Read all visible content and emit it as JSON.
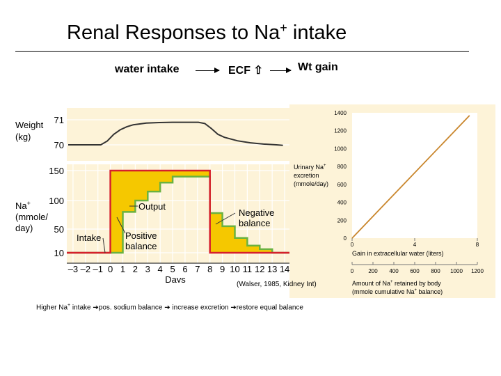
{
  "slide": {
    "title_main": "Renal Responses to Na",
    "title_sup": "+",
    "title_tail": " intake",
    "flow": {
      "item1": "water intake",
      "item2": "ECF",
      "item2_symbol": "⇧",
      "item3": "Wt gain"
    },
    "citation": "(Walser, 1985, Kidney Int)",
    "bottom_note": {
      "t1": "Higher Na",
      "sup": "+",
      "t2": " intake ",
      "arrow": "➔",
      "t3": "pos. sodium balance ",
      "t4": " increase excretion ",
      "t5": "restore equal balance"
    }
  },
  "colors": {
    "panel_bg": "#fdf3d8",
    "grid": "#ffffff",
    "intake_line": "#d6202c",
    "output_line": "#6ab23f",
    "balance_fill": "#f5c800",
    "weight_line": "#333333",
    "right_line": "#c9862c"
  },
  "chart_data": [
    {
      "type": "line",
      "panel": "weight",
      "ylabel_1": "Weight",
      "ylabel_2": "(kg)",
      "yticks": [
        "71",
        "70"
      ],
      "ylim": [
        69.8,
        71.3
      ],
      "x_range": [
        -3,
        14
      ],
      "series": [
        {
          "x": [
            -3,
            -0.5,
            0,
            0.5,
            1,
            1.5,
            2,
            3,
            4,
            5,
            6,
            7,
            7.5,
            8,
            8.5,
            9,
            10,
            11,
            12,
            13,
            13.5
          ],
          "y": [
            70.0,
            70.0,
            70.15,
            70.42,
            70.6,
            70.72,
            70.8,
            70.87,
            70.89,
            70.9,
            70.9,
            70.9,
            70.85,
            70.65,
            70.42,
            70.3,
            70.16,
            70.08,
            70.03,
            70.0,
            69.98
          ]
        }
      ]
    },
    {
      "type": "line",
      "panel": "sodium",
      "ylabel_1": "Na",
      "ylabel_1_sup": "+",
      "ylabel_2": "(mmole/",
      "ylabel_3": "day)",
      "yticks": [
        "150",
        "100",
        "50",
        "10"
      ],
      "xlabel": "Days",
      "xticks": [
        "–3",
        "–2",
        "–1",
        "0",
        "1",
        "2",
        "3",
        "4",
        "5",
        "6",
        "7",
        "8",
        "9",
        "10",
        "11",
        "12",
        "13",
        "14"
      ],
      "x_range": [
        -3.5,
        14.5
      ],
      "ylim": [
        0,
        160
      ],
      "series": [
        {
          "name": "Intake",
          "x": [
            -3.5,
            0,
            0,
            8,
            8,
            14.5
          ],
          "y": [
            10,
            10,
            150,
            150,
            10,
            10
          ]
        },
        {
          "name": "Output",
          "x": [
            -3.5,
            0,
            0,
            1,
            1,
            2,
            2,
            3,
            3,
            4,
            4,
            5,
            5,
            8,
            8,
            9,
            9,
            10,
            10,
            11,
            11,
            12,
            12,
            13,
            13,
            14.5
          ],
          "y": [
            10,
            10,
            10,
            10,
            80,
            80,
            100,
            100,
            115,
            115,
            130,
            130,
            140,
            140,
            78,
            78,
            55,
            55,
            35,
            35,
            22,
            22,
            16,
            16,
            10,
            10
          ]
        }
      ],
      "annotations": {
        "output": "Output",
        "negative_1": "Negative",
        "negative_2": "balance",
        "intake": "Intake",
        "positive_1": "Positive",
        "positive_2": "balance"
      }
    },
    {
      "type": "line",
      "panel": "excretion",
      "ylabel_1": "Urinary Na",
      "ylabel_1_sup": "+",
      "ylabel_2": "excretion",
      "ylabel_3": "(mmole/day)",
      "yticks": [
        "1400",
        "1200",
        "1000",
        "800",
        "600",
        "400",
        "200",
        "0"
      ],
      "ylim": [
        0,
        1400
      ],
      "xlabel": "Gain in extracellular water (liters)",
      "xticks": [
        "0",
        "4",
        "8"
      ],
      "x_range": [
        0,
        8
      ],
      "x2label_1": "Amount of Na",
      "x2label_1_sup": "+",
      "x2label_1_tail": " retained by body",
      "x2label_2": "(mmole cumulative Na",
      "x2label_2_sup": "+",
      "x2label_2_tail": " balance)",
      "x2ticks": [
        "0",
        "200",
        "400",
        "600",
        "800",
        "1000",
        "1200"
      ],
      "series": [
        {
          "x": [
            0,
            7.5
          ],
          "y": [
            0,
            1370
          ]
        }
      ]
    }
  ]
}
